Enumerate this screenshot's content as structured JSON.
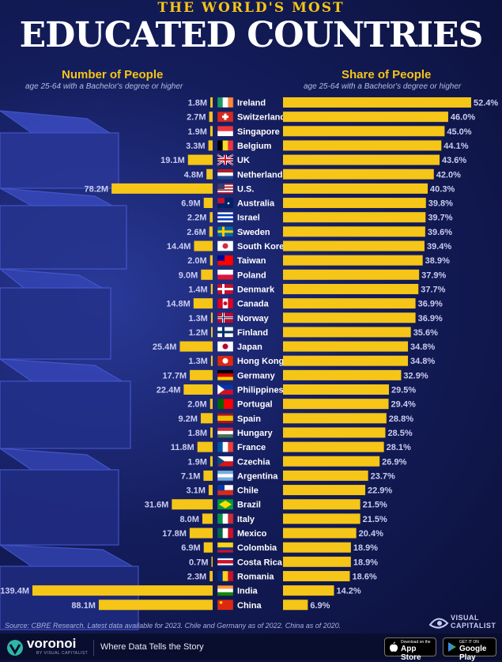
{
  "header": {
    "kicker": "THE WORLD'S MOST",
    "title": "EDUCATED COUNTRIES"
  },
  "left_header": {
    "title": "Number of People",
    "subtitle": "age 25-64 with a Bachelor's degree or higher"
  },
  "right_header": {
    "title": "Share of People",
    "subtitle": "age 25-64 with a Bachelor's degree or higher"
  },
  "colors": {
    "bar": "#f5c518",
    "label": "#c9ccf0",
    "background": "#0d1440"
  },
  "chart_data": {
    "type": "bar",
    "categories": [
      "Ireland",
      "Switzerland",
      "Singapore",
      "Belgium",
      "UK",
      "Netherlands",
      "U.S.",
      "Australia",
      "Israel",
      "Sweden",
      "South Korea",
      "Taiwan",
      "Poland",
      "Denmark",
      "Canada",
      "Norway",
      "Finland",
      "Japan",
      "Hong Kong",
      "Germany",
      "Philippines",
      "Portugal",
      "Spain",
      "Hungary",
      "France",
      "Czechia",
      "Argentina",
      "Chile",
      "Brazil",
      "Italy",
      "Mexico",
      "Colombia",
      "Costa Rica",
      "Romania",
      "India",
      "China"
    ],
    "series": [
      {
        "name": "Number of People",
        "values": [
          1.8,
          2.7,
          1.9,
          3.3,
          19.1,
          4.8,
          78.2,
          6.9,
          2.2,
          2.6,
          14.4,
          2.0,
          9.0,
          1.4,
          14.8,
          1.3,
          1.2,
          25.4,
          1.3,
          17.7,
          22.4,
          2.0,
          9.2,
          1.8,
          11.8,
          1.9,
          7.1,
          3.1,
          31.6,
          8.0,
          17.8,
          6.9,
          0.7,
          2.3,
          139.4,
          88.1
        ],
        "labels": [
          "1.8M",
          "2.7M",
          "1.9M",
          "3.3M",
          "19.1M",
          "4.8M",
          "78.2M",
          "6.9M",
          "2.2M",
          "2.6M",
          "14.4M",
          "2.0M",
          "9.0M",
          "1.4M",
          "14.8M",
          "1.3M",
          "1.2M",
          "25.4M",
          "1.3M",
          "17.7M",
          "22.4M",
          "2.0M",
          "9.2M",
          "1.8M",
          "11.8M",
          "1.9M",
          "7.1M",
          "3.1M",
          "31.6M",
          "8.0M",
          "17.8M",
          "6.9M",
          "0.7M",
          "2.3M",
          "139.4M",
          "88.1M"
        ],
        "unit": "M"
      },
      {
        "name": "Share of People",
        "values": [
          52.4,
          46.0,
          45.0,
          44.1,
          43.6,
          42.0,
          40.3,
          39.8,
          39.7,
          39.6,
          39.4,
          38.9,
          37.9,
          37.7,
          36.9,
          36.9,
          35.6,
          34.8,
          34.8,
          32.9,
          29.5,
          29.4,
          28.8,
          28.5,
          28.1,
          26.9,
          23.7,
          22.9,
          21.5,
          21.5,
          20.4,
          18.9,
          18.9,
          18.6,
          14.2,
          6.9
        ],
        "labels": [
          "52.4%",
          "46.0%",
          "45.0%",
          "44.1%",
          "43.6%",
          "42.0%",
          "40.3%",
          "39.8%",
          "39.7%",
          "39.6%",
          "39.4%",
          "38.9%",
          "37.9%",
          "37.7%",
          "36.9%",
          "36.9%",
          "35.6%",
          "34.8%",
          "34.8%",
          "32.9%",
          "29.5%",
          "29.4%",
          "28.8%",
          "28.5%",
          "28.1%",
          "26.9%",
          "23.7%",
          "22.9%",
          "21.5%",
          "21.5%",
          "20.4%",
          "18.9%",
          "18.9%",
          "18.6%",
          "14.2%",
          "6.9%"
        ],
        "unit": "%"
      }
    ],
    "flag_icons": [
      "ireland-flag-icon",
      "switzerland-flag-icon",
      "singapore-flag-icon",
      "belgium-flag-icon",
      "uk-flag-icon",
      "netherlands-flag-icon",
      "us-flag-icon",
      "australia-flag-icon",
      "israel-flag-icon",
      "sweden-flag-icon",
      "south-korea-flag-icon",
      "taiwan-flag-icon",
      "poland-flag-icon",
      "denmark-flag-icon",
      "canada-flag-icon",
      "norway-flag-icon",
      "finland-flag-icon",
      "japan-flag-icon",
      "hong-kong-flag-icon",
      "germany-flag-icon",
      "philippines-flag-icon",
      "portugal-flag-icon",
      "spain-flag-icon",
      "hungary-flag-icon",
      "france-flag-icon",
      "czechia-flag-icon",
      "argentina-flag-icon",
      "chile-flag-icon",
      "brazil-flag-icon",
      "italy-flag-icon",
      "mexico-flag-icon",
      "colombia-flag-icon",
      "costa-rica-flag-icon",
      "romania-flag-icon",
      "india-flag-icon",
      "china-flag-icon"
    ],
    "sorted_by": "Share of People, descending"
  },
  "source": "Source: CBRE Research. Latest data available for 2023. Chile and Germany as of 2022. China as of 2020.",
  "brand": {
    "visual_capitalist_line1": "VISUAL",
    "visual_capitalist_line2": "CAPITALIST"
  },
  "footer": {
    "brand_name": "voronoi",
    "brand_byline": "BY VISUAL CAPITALIST",
    "tagline": "Where Data Tells the Story",
    "app_store_small": "Download on the",
    "app_store_big": "App Store",
    "google_play_small": "GET IT ON",
    "google_play_big": "Google Play"
  }
}
